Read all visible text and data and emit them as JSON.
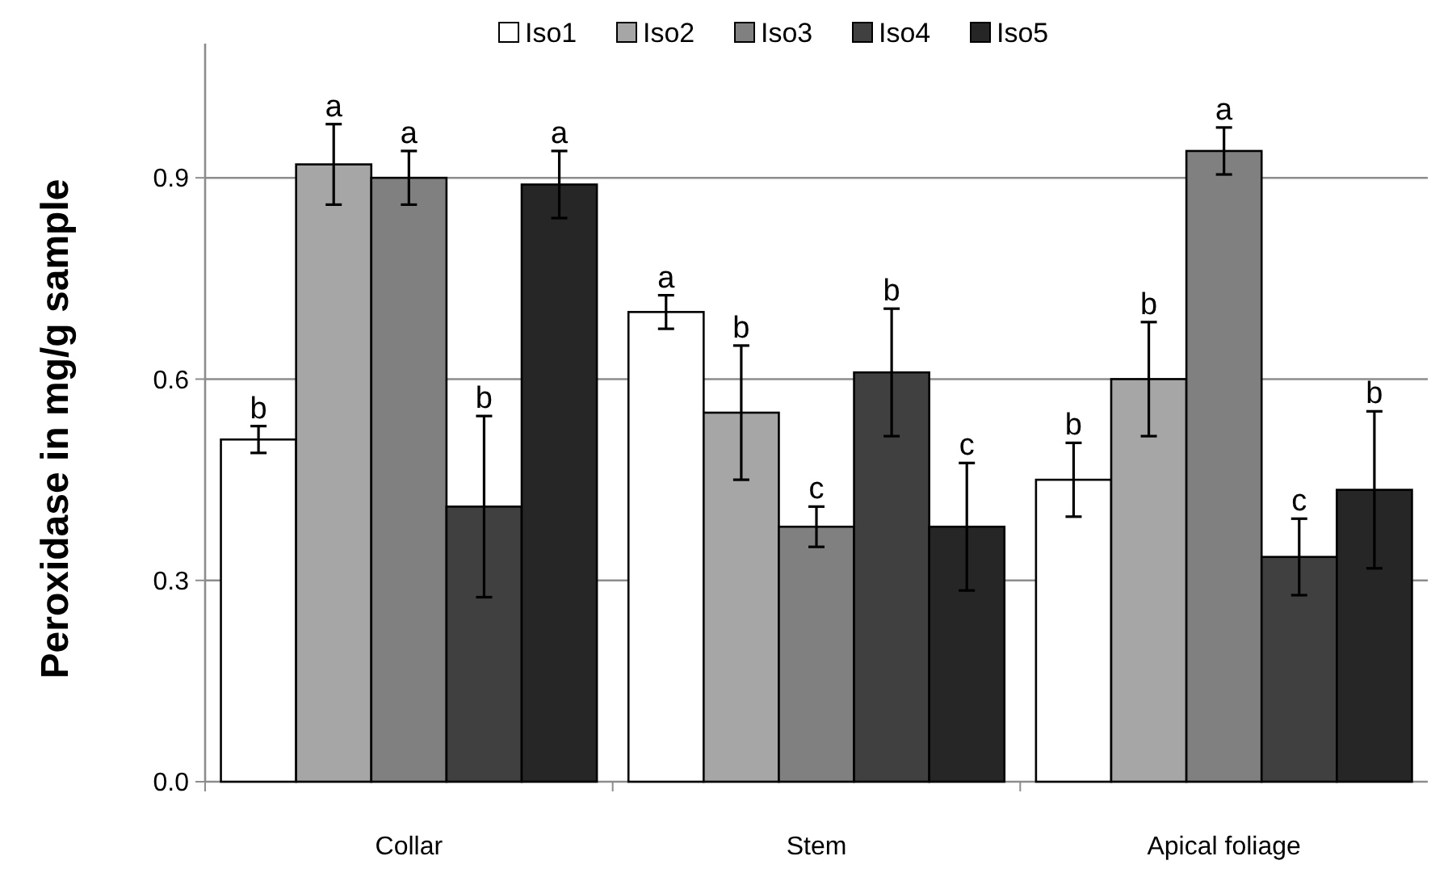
{
  "chart_data": {
    "type": "bar",
    "ylabel": "Peroxidase in mg/g sample",
    "categories": [
      "Collar",
      "Stem",
      "Apical foliage"
    ],
    "series": [
      {
        "name": "Iso1",
        "color": "#ffffff",
        "values": [
          0.51,
          0.7,
          0.45
        ],
        "errors": [
          0.02,
          0.025,
          0.055
        ],
        "value_labels": [
          "b",
          "a",
          "b"
        ]
      },
      {
        "name": "Iso2",
        "color": "#a6a6a6",
        "values": [
          0.92,
          0.55,
          0.6
        ],
        "errors": [
          0.06,
          0.1,
          0.085
        ],
        "value_labels": [
          "a",
          "b",
          "b"
        ]
      },
      {
        "name": "Iso3",
        "color": "#808080",
        "values": [
          0.9,
          0.38,
          0.94
        ],
        "errors": [
          0.04,
          0.03,
          0.035
        ],
        "value_labels": [
          "a",
          "c",
          "a"
        ]
      },
      {
        "name": "Iso4",
        "color": "#404040",
        "values": [
          0.41,
          0.61,
          0.335
        ],
        "errors": [
          0.135,
          0.095,
          0.057
        ],
        "value_labels": [
          "b",
          "b",
          "c"
        ]
      },
      {
        "name": "Iso5",
        "color": "#262626",
        "values": [
          0.89,
          0.38,
          0.435
        ],
        "errors": [
          0.05,
          0.095,
          0.117
        ],
        "value_labels": [
          "a",
          "c",
          "b"
        ]
      }
    ],
    "ylim": [
      0,
      1.1
    ],
    "yticks": [
      {
        "value": 0,
        "label": "0.0"
      },
      0.3,
      0.6,
      0.9
    ],
    "grid": "y",
    "legend": "top"
  }
}
